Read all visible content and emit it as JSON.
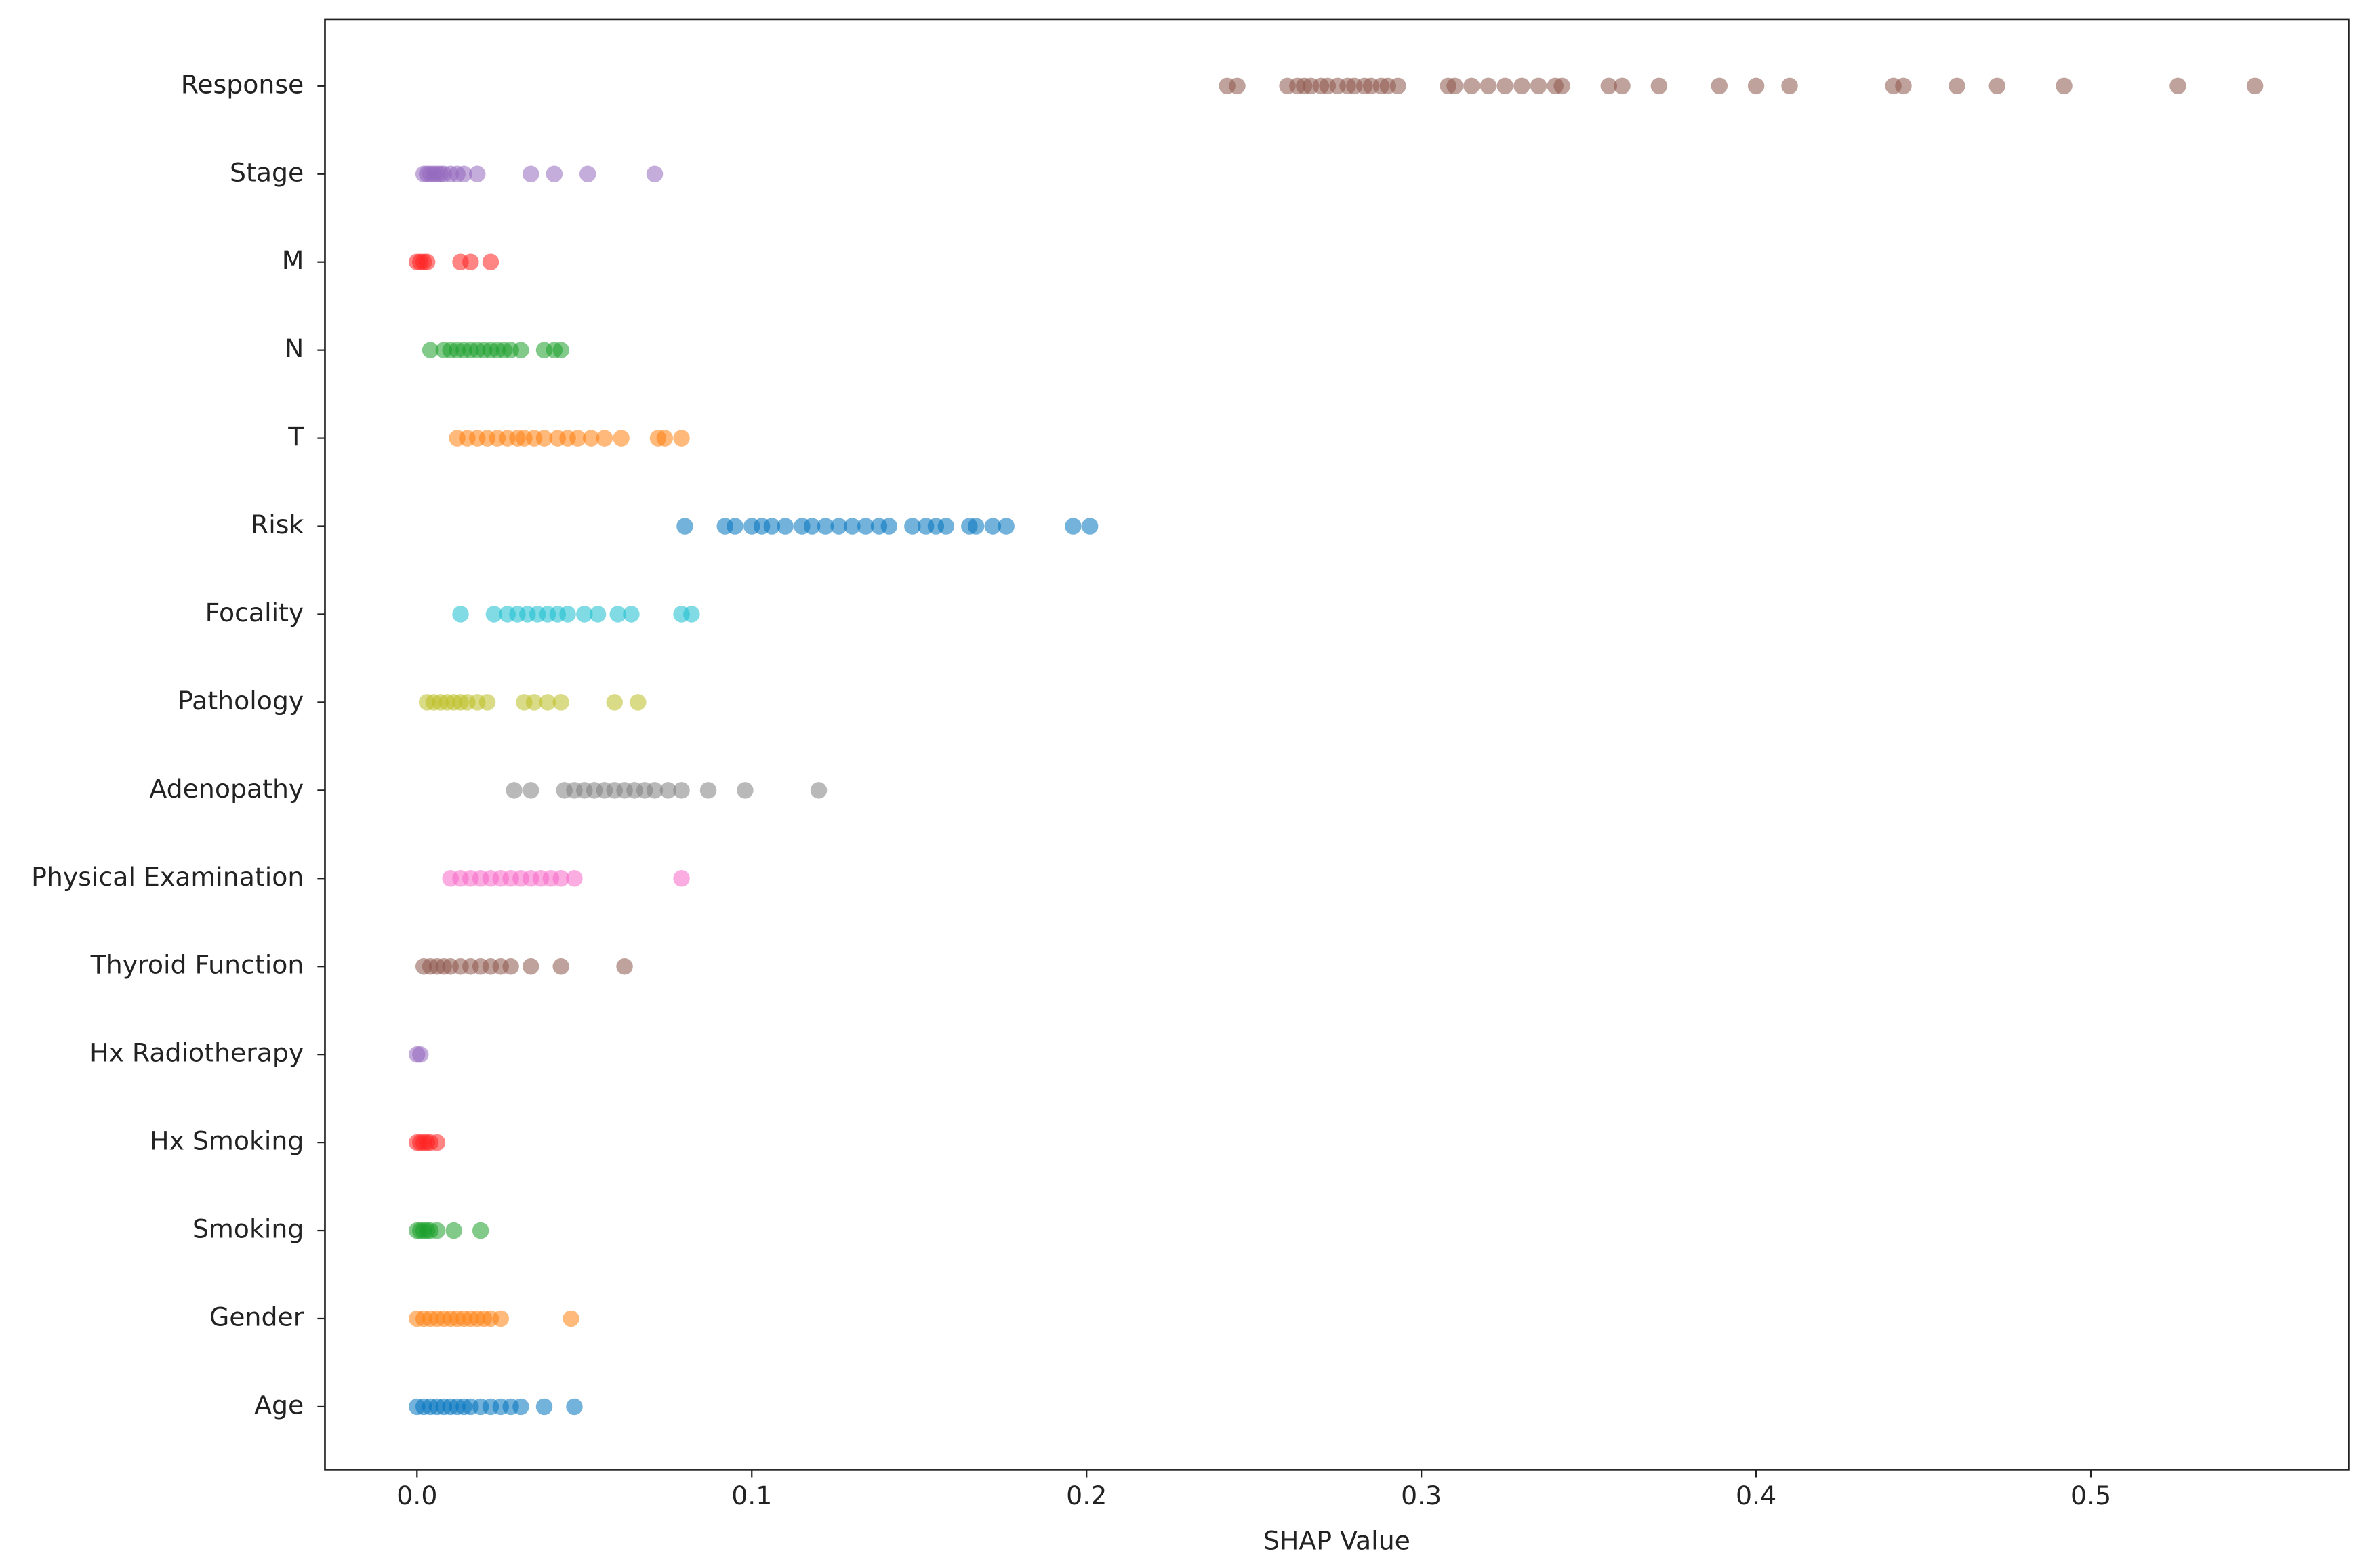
{
  "chart_data": {
    "type": "strip",
    "xlabel": "SHAP Value",
    "categories": [
      "Response",
      "Stage",
      "M",
      "N",
      "T",
      "Risk",
      "Focality",
      "Pathology",
      "Adenopathy",
      "Physical Examination",
      "Thyroid Function",
      "Hx Radiotherapy",
      "Hx Smoking",
      "Smoking",
      "Gender",
      "Age"
    ],
    "colors": [
      "#8c564b",
      "#9467bd",
      "#ff2020",
      "#1a9e2a",
      "#ff7f0e",
      "#0072bd",
      "#17becf",
      "#bcbd22",
      "#7f7f7f",
      "#f768c8",
      "#8c564b",
      "#9467bd",
      "#ff2020",
      "#1a9e2a",
      "#ff7f0e",
      "#0072bd"
    ],
    "values": [
      [
        0.242,
        0.245,
        0.26,
        0.263,
        0.265,
        0.267,
        0.27,
        0.272,
        0.275,
        0.278,
        0.28,
        0.283,
        0.285,
        0.288,
        0.29,
        0.293,
        0.308,
        0.31,
        0.315,
        0.32,
        0.325,
        0.33,
        0.335,
        0.34,
        0.342,
        0.356,
        0.36,
        0.371,
        0.389,
        0.4,
        0.41,
        0.441,
        0.444,
        0.46,
        0.472,
        0.492,
        0.526,
        0.549
      ],
      [
        0.002,
        0.003,
        0.004,
        0.005,
        0.006,
        0.007,
        0.008,
        0.01,
        0.012,
        0.014,
        0.018,
        0.034,
        0.041,
        0.051,
        0.071
      ],
      [
        0,
        0.001,
        0.002,
        0.003,
        0.013,
        0.016,
        0.022
      ],
      [
        0.004,
        0.008,
        0.01,
        0.012,
        0.014,
        0.016,
        0.018,
        0.02,
        0.022,
        0.024,
        0.026,
        0.028,
        0.031,
        0.038,
        0.041,
        0.043
      ],
      [
        0.012,
        0.015,
        0.018,
        0.021,
        0.024,
        0.027,
        0.03,
        0.032,
        0.035,
        0.038,
        0.042,
        0.045,
        0.048,
        0.052,
        0.056,
        0.061,
        0.072,
        0.074,
        0.079
      ],
      [
        0.08,
        0.092,
        0.095,
        0.1,
        0.103,
        0.106,
        0.11,
        0.115,
        0.118,
        0.122,
        0.126,
        0.13,
        0.134,
        0.138,
        0.141,
        0.148,
        0.152,
        0.155,
        0.158,
        0.165,
        0.167,
        0.172,
        0.176,
        0.196,
        0.201
      ],
      [
        0.013,
        0.023,
        0.027,
        0.03,
        0.033,
        0.036,
        0.039,
        0.042,
        0.045,
        0.05,
        0.054,
        0.06,
        0.064,
        0.079,
        0.082
      ],
      [
        0.003,
        0.005,
        0.007,
        0.009,
        0.011,
        0.013,
        0.015,
        0.018,
        0.021,
        0.032,
        0.035,
        0.039,
        0.043,
        0.059,
        0.066
      ],
      [
        0.029,
        0.034,
        0.044,
        0.047,
        0.05,
        0.053,
        0.056,
        0.059,
        0.062,
        0.065,
        0.068,
        0.071,
        0.075,
        0.079,
        0.087,
        0.098,
        0.12
      ],
      [
        0.01,
        0.013,
        0.016,
        0.019,
        0.022,
        0.025,
        0.028,
        0.031,
        0.034,
        0.037,
        0.04,
        0.043,
        0.047,
        0.079
      ],
      [
        0.002,
        0.004,
        0.006,
        0.008,
        0.01,
        0.013,
        0.016,
        0.019,
        0.022,
        0.025,
        0.028,
        0.034,
        0.043,
        0.062
      ],
      [
        0,
        0.001
      ],
      [
        0,
        0.001,
        0.002,
        0.003,
        0.004,
        0.006
      ],
      [
        0,
        0.001,
        0.002,
        0.003,
        0.004,
        0.006,
        0.011,
        0.019
      ],
      [
        0,
        0.002,
        0.004,
        0.006,
        0.008,
        0.01,
        0.012,
        0.014,
        0.016,
        0.018,
        0.02,
        0.022,
        0.025,
        0.046
      ],
      [
        0,
        0.002,
        0.004,
        0.006,
        0.008,
        0.01,
        0.012,
        0.014,
        0.016,
        0.019,
        0.022,
        0.025,
        0.028,
        0.031,
        0.038,
        0.047
      ]
    ],
    "xlim": [
      -0.0275,
      0.577
    ],
    "xticks": [
      {
        "value": 0,
        "label": "0.0"
      },
      0.1,
      0.2,
      0.3,
      0.4,
      0.5
    ]
  }
}
